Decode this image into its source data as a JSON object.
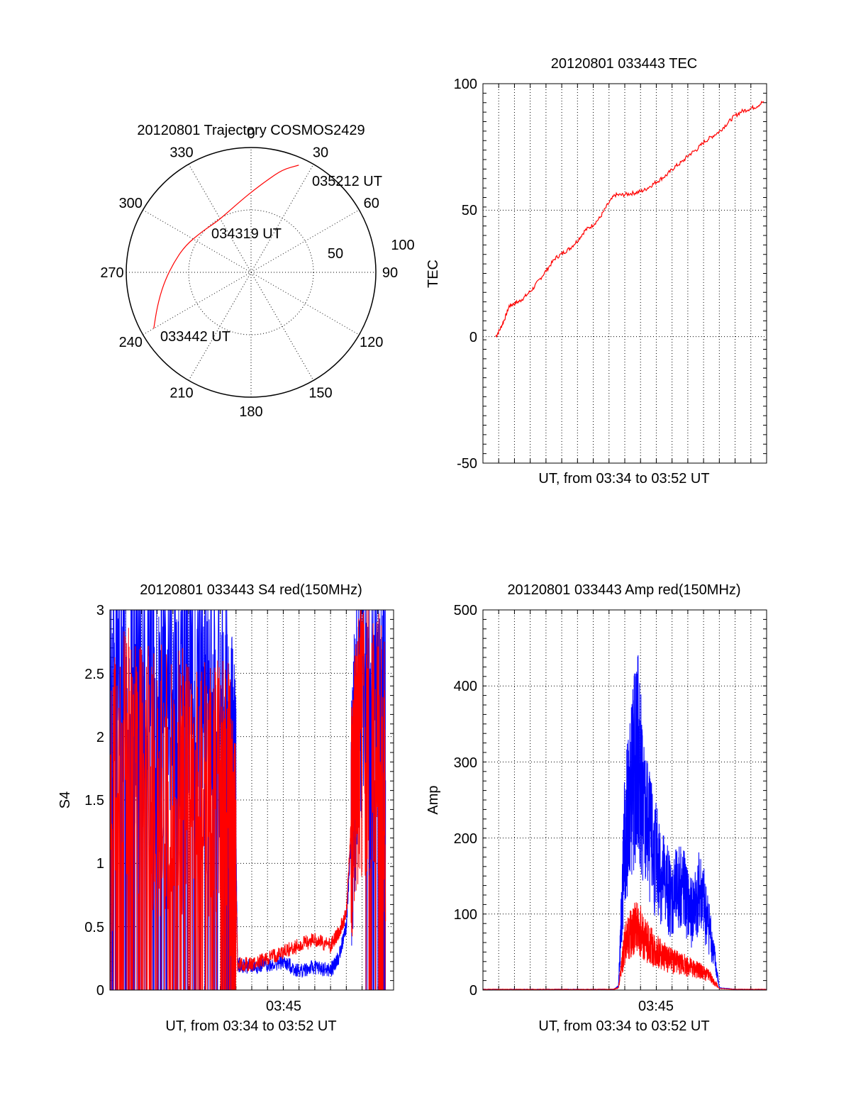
{
  "chart_data": [
    {
      "type": "polar",
      "title": "20120801 Trajectory COSMOS2429",
      "angle_labels": [
        "0",
        "30",
        "60",
        "90",
        "120",
        "150",
        "180",
        "210",
        "240",
        "270",
        "300",
        "330"
      ],
      "radius_labels": [
        "50",
        "100"
      ],
      "rmax": 100,
      "trajectory": {
        "color": "#ff0000",
        "points": [
          [
            240,
            90
          ],
          [
            250,
            80
          ],
          [
            262,
            71
          ],
          [
            276,
            63
          ],
          [
            292,
            57
          ],
          [
            310,
            51
          ],
          [
            326,
            49
          ],
          [
            340,
            52
          ],
          [
            352,
            58
          ],
          [
            2,
            66
          ],
          [
            10,
            75
          ],
          [
            17,
            86
          ],
          [
            24,
            94
          ]
        ]
      },
      "annotations": [
        "033442 UT",
        "034319 UT",
        "035212 UT"
      ]
    },
    {
      "type": "line",
      "title": "20120801 033443 TEC",
      "xlabel": "UT, from 03:34 to 03:52 UT",
      "ylabel": "TEC",
      "ylim": [
        -50,
        100
      ],
      "yticks": [
        "-50",
        "0",
        "50",
        "100"
      ],
      "grid": true,
      "series": [
        {
          "color": "#ff0000",
          "x": [
            0,
            0.3,
            0.6,
            0.9,
            1.2,
            1.6,
            2.0,
            2.5,
            3.0,
            3.5,
            4.0,
            4.5,
            5.0,
            5.5,
            6.0,
            6.5,
            7.0,
            7.5,
            8.0,
            8.5,
            9.0,
            9.5,
            10.0,
            10.5,
            11.0,
            11.5,
            12.0,
            12.5,
            13.0,
            13.5,
            14.0,
            14.5,
            15.0,
            15.5,
            16.0,
            16.5,
            17.0,
            17.5,
            18.0
          ],
          "y": [
            0,
            3,
            7,
            12,
            13,
            14,
            16,
            19,
            23,
            27,
            31,
            33,
            35,
            38,
            42,
            44,
            47,
            52,
            56,
            56,
            56.5,
            57,
            58,
            60,
            62,
            64,
            67,
            69,
            72,
            74,
            77,
            79,
            81,
            84,
            87,
            89,
            90,
            91,
            93
          ]
        }
      ]
    },
    {
      "type": "line",
      "title": "20120801 033443 S4 red(150MHz)",
      "xlabel": "UT, from 03:34 to 03:52 UT",
      "ylabel": "S4",
      "ylim": [
        0,
        3
      ],
      "yticks": [
        "0",
        "0.5",
        "1",
        "1.5",
        "2",
        "2.5",
        "3"
      ],
      "xtick_label": "03:45",
      "grid": true,
      "series": [
        {
          "color": "#0000ff",
          "x": [
            0,
            1,
            2,
            3,
            4,
            5,
            6,
            7,
            7.5,
            7.8,
            8.0,
            8.1,
            9,
            10,
            11,
            12,
            13,
            14,
            14.5,
            15.0,
            15.3,
            15.6,
            16,
            17,
            17.5
          ],
          "y": [
            2.6,
            2.5,
            2.7,
            2.6,
            2.4,
            2.5,
            2.4,
            2.3,
            2.0,
            1.7,
            1.2,
            0.2,
            0.18,
            0.2,
            0.22,
            0.15,
            0.18,
            0.15,
            0.25,
            0.5,
            1.2,
            2.0,
            2.4,
            2.5,
            2.5
          ]
        },
        {
          "color": "#ff0000",
          "x": [
            0,
            1,
            2,
            3,
            4,
            5,
            6,
            7,
            7.5,
            7.8,
            8.0,
            8.1,
            9,
            10,
            11,
            12,
            13,
            14,
            14.5,
            15.0,
            15.3,
            15.6,
            16,
            17,
            17.5
          ],
          "y": [
            1.5,
            1.9,
            1.7,
            1.6,
            1.8,
            1.5,
            1.7,
            1.5,
            1.6,
            1.2,
            0.9,
            0.2,
            0.2,
            0.25,
            0.3,
            0.35,
            0.4,
            0.35,
            0.45,
            0.6,
            1.3,
            1.8,
            2.0,
            2.0,
            1.6
          ]
        }
      ]
    },
    {
      "type": "line",
      "title": "20120801 033443 Amp red(150MHz)",
      "xlabel": "UT, from 03:34 to 03:52 UT",
      "ylabel": "Amp",
      "ylim": [
        0,
        500
      ],
      "yticks": [
        "0",
        "100",
        "200",
        "300",
        "400",
        "500"
      ],
      "xtick_label": "03:45",
      "grid": true,
      "series": [
        {
          "color": "#0000ff",
          "x": [
            0,
            4,
            8.3,
            8.6,
            9.0,
            9.4,
            9.8,
            10.2,
            10.8,
            11.4,
            12.0,
            12.6,
            13.2,
            13.8,
            14.4,
            15.0,
            16,
            18
          ],
          "y": [
            1,
            1,
            1,
            5,
            200,
            260,
            320,
            230,
            180,
            150,
            120,
            140,
            100,
            130,
            80,
            3,
            1,
            1
          ]
        },
        {
          "color": "#ff0000",
          "x": [
            0,
            4,
            8.3,
            8.6,
            9.0,
            9.4,
            9.8,
            10.2,
            10.8,
            11.4,
            12.0,
            12.6,
            13.2,
            13.8,
            14.4,
            15.0,
            16,
            18
          ],
          "y": [
            1,
            1,
            1,
            3,
            60,
            75,
            85,
            70,
            55,
            45,
            38,
            35,
            30,
            25,
            18,
            2,
            1,
            1
          ]
        }
      ]
    }
  ]
}
